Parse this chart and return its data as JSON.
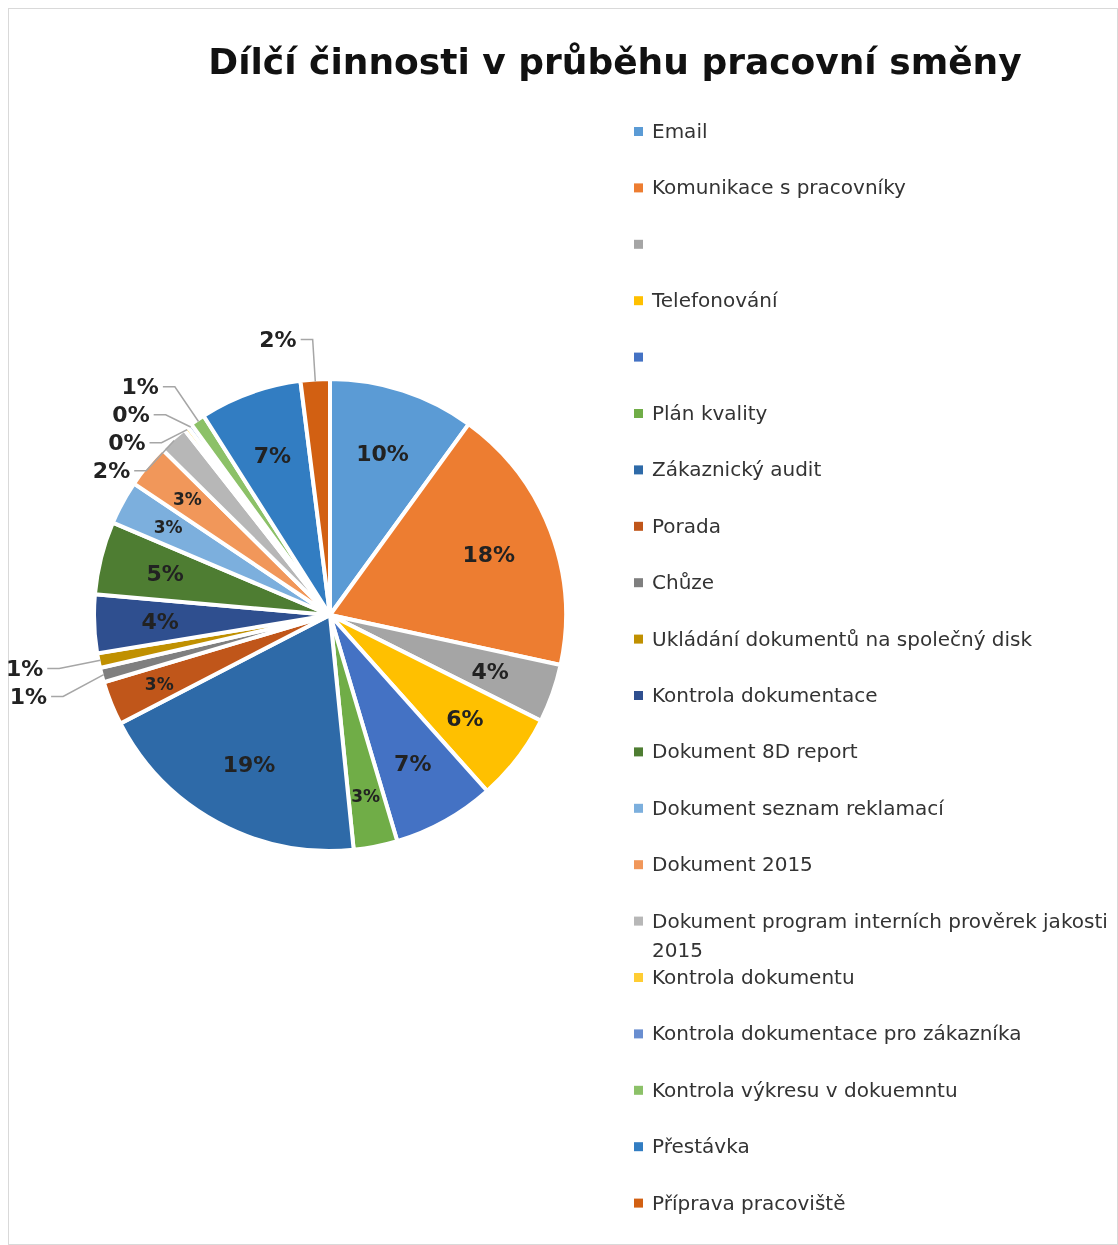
{
  "chart_data": {
    "type": "pie",
    "title": "Dílčí činnosti v průběhu pracovní směny",
    "categories": [
      "Email",
      "Komunikace s pracovníky",
      null,
      "Telefonování",
      null,
      "Plán kvality",
      "Zákaznický audit",
      "Porada",
      "Chůze",
      "Ukládání dokumentů na společný disk",
      "Kontrola dokumentace",
      "Dokument 8D report",
      "Dokument seznam reklamací",
      "Dokument 2015",
      "Dokument program interních prověrek jakosti 2015",
      "Kontrola dokumentu",
      "Kontrola dokumentace pro zákazníka",
      "Kontrola výkresu v dokuemntu",
      "Přestávka",
      "Příprava pracoviště"
    ],
    "values": [
      10,
      18.4,
      4,
      6,
      7,
      3,
      19,
      3,
      1,
      1,
      4,
      5,
      3,
      3,
      2,
      0.3,
      0.3,
      1,
      7,
      2
    ],
    "value_labels": [
      "10%",
      "18%",
      "4%",
      "6%",
      "7%",
      "3%",
      "19%",
      "3%",
      "1%",
      "1%",
      "4%",
      "5%",
      "3%",
      "3%",
      "2%",
      "0%",
      "0%",
      "1%",
      "7%",
      "2%"
    ],
    "colors": [
      "#5b9bd5",
      "#ed7d31",
      "#a5a5a5",
      "#ffc000",
      "#4472c4",
      "#70ad47",
      "#2e6aa8",
      "#c0561a",
      "#7f7f7f",
      "#c09000",
      "#2f4f8f",
      "#4e7d32",
      "#7cafdd",
      "#f1975a",
      "#b7b7b7",
      "#ffcd33",
      "#698ed0",
      "#8cc168",
      "#327dc2",
      "#d26012"
    ],
    "legend": "right"
  }
}
